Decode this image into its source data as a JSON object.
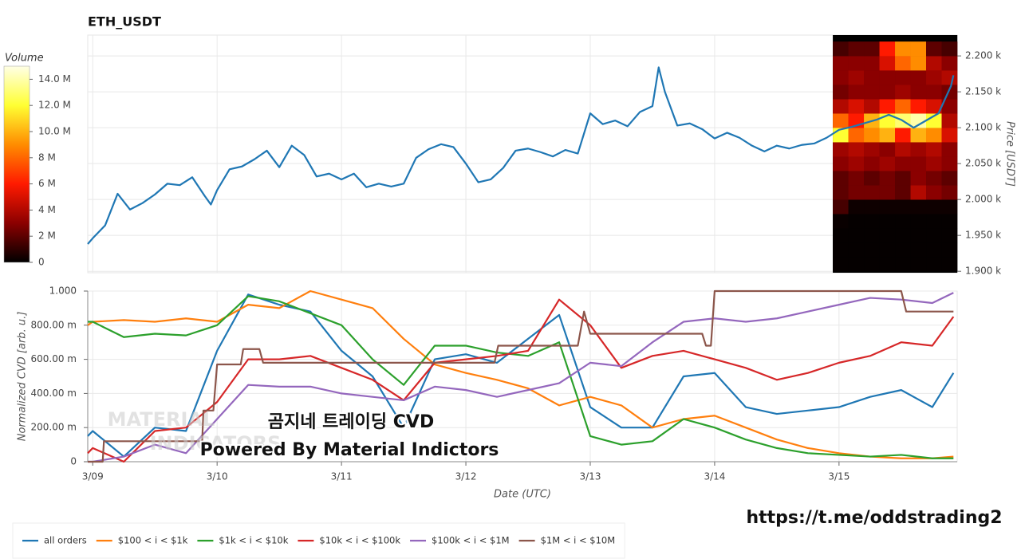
{
  "chart_data": [
    {
      "type": "line",
      "title": "ETH_USDT",
      "y_label": "Price [USDT]",
      "yaxis": "right",
      "color": "#1f77b4",
      "grid": true,
      "xlim": [
        -0.04,
        6.95
      ],
      "xticks": [
        0,
        1,
        2,
        3,
        4,
        5,
        6
      ],
      "ylim": [
        1898,
        2229
      ],
      "yticks": [
        {
          "value": 1900,
          "label": "1.900 k"
        },
        {
          "value": 1950,
          "label": "1.950 k"
        },
        {
          "value": 2000,
          "label": "2.000 k"
        },
        {
          "value": 2050,
          "label": "2.050 k"
        },
        {
          "value": 2100,
          "label": "2.100 k"
        },
        {
          "value": 2150,
          "label": "2.150 k"
        },
        {
          "value": 2200,
          "label": "2.200 k"
        }
      ],
      "x": [
        -0.04,
        0,
        0.1,
        0.2,
        0.3,
        0.4,
        0.5,
        0.6,
        0.7,
        0.8,
        0.9,
        0.95,
        1.0,
        1.1,
        1.2,
        1.3,
        1.4,
        1.5,
        1.6,
        1.7,
        1.8,
        1.9,
        2.0,
        2.1,
        2.2,
        2.3,
        2.4,
        2.5,
        2.6,
        2.7,
        2.8,
        2.9,
        3.0,
        3.1,
        3.2,
        3.3,
        3.4,
        3.5,
        3.6,
        3.7,
        3.8,
        3.9,
        4.0,
        4.1,
        4.2,
        4.3,
        4.4,
        4.5,
        4.55,
        4.6,
        4.7,
        4.8,
        4.9,
        5.0,
        5.1,
        5.2,
        5.3,
        5.4,
        5.5,
        5.6,
        5.7,
        5.8,
        5.9,
        6.0,
        6.1,
        6.2,
        6.3,
        6.4,
        6.5,
        6.6,
        6.7,
        6.8,
        6.9,
        6.92
      ],
      "values": [
        1938,
        1946,
        1964,
        2008,
        1986,
        1995,
        2007,
        2022,
        2020,
        2031,
        2005,
        1993,
        2013,
        2042,
        2046,
        2056,
        2068,
        2045,
        2075,
        2062,
        2032,
        2036,
        2028,
        2036,
        2017,
        2022,
        2018,
        2022,
        2058,
        2070,
        2077,
        2073,
        2050,
        2024,
        2028,
        2044,
        2068,
        2071,
        2066,
        2060,
        2069,
        2064,
        2120,
        2105,
        2110,
        2102,
        2122,
        2130,
        2184,
        2150,
        2103,
        2106,
        2098,
        2085,
        2093,
        2086,
        2075,
        2067,
        2075,
        2071,
        2076,
        2078,
        2086,
        2097,
        2101,
        2106,
        2111,
        2118,
        2111,
        2100,
        2110,
        2120,
        2158,
        2173
      ],
      "heatmap": {
        "label": "Volume",
        "colorscale": [
          "#000000",
          "#8b0000",
          "#ff1a00",
          "#ff8c00",
          "#ffff33",
          "#ffffe6"
        ],
        "clim": [
          0,
          15
        ],
        "cticks": [
          {
            "value": 0,
            "label": "0"
          },
          {
            "value": 2,
            "label": "2 M"
          },
          {
            "value": 4,
            "label": "4 M"
          },
          {
            "value": 6,
            "label": "6 M"
          },
          {
            "value": 8,
            "label": "8 M"
          },
          {
            "value": 10,
            "label": "10.0 M"
          },
          {
            "value": 12,
            "label": "12.0 M"
          },
          {
            "value": 14,
            "label": "14.0 M"
          }
        ],
        "xbins": [
          5.95,
          6.075,
          6.2,
          6.325,
          6.45,
          6.575,
          6.7,
          6.825,
          6.95
        ],
        "ybins": [
          1900,
          1920,
          1940,
          1960,
          1980,
          2000,
          2020,
          2040,
          2060,
          2080,
          2100,
          2120,
          2140,
          2160,
          2180,
          2200,
          2220
        ],
        "values": [
          [
            0.1,
            0.1,
            0.1,
            0.1,
            0.1,
            0.1,
            0.1,
            0.1
          ],
          [
            0.1,
            0.1,
            0.1,
            0.1,
            0.1,
            0.1,
            0.1,
            0.1
          ],
          [
            0.1,
            0.1,
            0.1,
            0.1,
            0.1,
            0.1,
            0.1,
            0.1
          ],
          [
            0.2,
            0.1,
            0.1,
            0.1,
            0.1,
            0.1,
            0.1,
            0.1
          ],
          [
            1.5,
            0.3,
            0.3,
            0.3,
            0.3,
            0.3,
            0.3,
            0.3
          ],
          [
            2,
            2.5,
            2.5,
            2.5,
            2,
            4,
            3,
            2.5
          ],
          [
            2,
            2.5,
            2,
            2.5,
            2,
            3,
            2.5,
            2
          ],
          [
            3,
            3.5,
            3,
            3.5,
            3,
            3,
            3.5,
            3
          ],
          [
            3.5,
            4,
            3.5,
            3,
            4,
            3.5,
            4,
            3
          ],
          [
            12,
            8,
            9,
            10,
            6,
            10,
            9,
            5
          ],
          [
            8,
            6,
            10,
            12,
            13,
            14,
            12,
            4
          ],
          [
            4,
            5,
            4,
            6,
            8,
            6,
            5,
            3
          ],
          [
            2.5,
            3,
            3,
            3,
            3.5,
            3,
            3,
            2.5
          ],
          [
            3,
            3.5,
            3,
            3,
            3,
            3,
            3.5,
            4
          ],
          [
            3,
            3,
            3,
            5,
            8,
            9,
            4,
            3
          ],
          [
            1.5,
            2,
            2,
            6,
            9,
            9,
            2,
            1.5
          ]
        ]
      }
    },
    {
      "type": "line",
      "x_label": "Date (UTC)",
      "y_label": "Normalized CVD [arb. u.]",
      "grid": true,
      "legend": "bottom-left",
      "xlim": [
        -0.04,
        6.95
      ],
      "xticks": [
        {
          "value": 0,
          "label": "3/09"
        },
        {
          "value": 1,
          "label": "3/10"
        },
        {
          "value": 2,
          "label": "3/11"
        },
        {
          "value": 3,
          "label": "3/12"
        },
        {
          "value": 4,
          "label": "3/13"
        },
        {
          "value": 5,
          "label": "3/14"
        },
        {
          "value": 6,
          "label": "3/15"
        }
      ],
      "ylim": [
        0,
        1
      ],
      "yticks": [
        0,
        {
          "value": 0.2,
          "label": "200.00 m"
        },
        {
          "value": 0.4,
          "label": "400.00 m"
        },
        {
          "value": 0.6,
          "label": "600.00 m"
        },
        {
          "value": 0.8,
          "label": "800.00 m"
        },
        {
          "value": 1,
          "label": "1.000"
        }
      ],
      "x": [
        -0.04,
        0,
        0.25,
        0.5,
        0.75,
        1,
        1.25,
        1.5,
        1.75,
        2,
        2.25,
        2.5,
        2.75,
        3,
        3.25,
        3.5,
        3.75,
        4,
        4.25,
        4.5,
        4.75,
        5,
        5.25,
        5.5,
        5.75,
        6,
        6.25,
        6.5,
        6.75,
        6.92
      ],
      "series": [
        {
          "name": "all orders",
          "color": "#1f77b4",
          "values": [
            0.15,
            0.18,
            0.03,
            0.2,
            0.18,
            0.65,
            0.98,
            0.92,
            0.88,
            0.65,
            0.5,
            0.2,
            0.6,
            0.63,
            0.58,
            0.72,
            0.86,
            0.32,
            0.2,
            0.2,
            0.5,
            0.52,
            0.32,
            0.28,
            0.3,
            0.32,
            0.38,
            0.42,
            0.32,
            0.52
          ]
        },
        {
          "name": "$100 < i < $1k",
          "color": "#ff7f0e",
          "values": [
            0.8,
            0.82,
            0.83,
            0.82,
            0.84,
            0.82,
            0.92,
            0.9,
            1.0,
            0.95,
            0.9,
            0.72,
            0.57,
            0.52,
            0.48,
            0.43,
            0.33,
            0.38,
            0.33,
            0.2,
            0.25,
            0.27,
            0.2,
            0.13,
            0.08,
            0.05,
            0.03,
            0.02,
            0.02,
            0.03
          ]
        },
        {
          "name": "$1k < i < $10k",
          "color": "#2ca02c",
          "values": [
            0.82,
            0.82,
            0.73,
            0.75,
            0.74,
            0.8,
            0.97,
            0.94,
            0.87,
            0.8,
            0.6,
            0.45,
            0.68,
            0.68,
            0.64,
            0.62,
            0.7,
            0.15,
            0.1,
            0.12,
            0.25,
            0.2,
            0.13,
            0.08,
            0.05,
            0.04,
            0.03,
            0.04,
            0.02,
            0.02
          ]
        },
        {
          "name": "$10k < i < $100k",
          "color": "#d62728",
          "values": [
            0.05,
            0.08,
            0,
            0.18,
            0.2,
            0.35,
            0.6,
            0.6,
            0.62,
            0.55,
            0.48,
            0.36,
            0.58,
            0.6,
            0.62,
            0.65,
            0.95,
            0.8,
            0.55,
            0.62,
            0.65,
            0.6,
            0.55,
            0.48,
            0.52,
            0.58,
            0.62,
            0.7,
            0.68,
            0.85
          ]
        },
        {
          "name": "$100k < i < $1M",
          "color": "#9467bd",
          "values": [
            0,
            0,
            0.03,
            0.1,
            0.05,
            0.25,
            0.45,
            0.44,
            0.44,
            0.4,
            0.38,
            0.36,
            0.44,
            0.42,
            0.38,
            0.42,
            0.46,
            0.58,
            0.56,
            0.7,
            0.82,
            0.84,
            0.82,
            0.84,
            0.88,
            0.92,
            0.96,
            0.95,
            0.93,
            0.99
          ]
        },
        {
          "name": "$1M < i < $10M",
          "color": "#8c564b",
          "x": [
            -0.04,
            0.08,
            0.09,
            0.88,
            0.89,
            0.97,
            1.0,
            1.19,
            1.21,
            1.34,
            1.37,
            3.23,
            3.26,
            3.9,
            3.95,
            4.0,
            4.9,
            4.93,
            4.97,
            5.0,
            6.5,
            6.54,
            6.92
          ],
          "values": [
            0,
            0,
            0.12,
            0.12,
            0.3,
            0.3,
            0.57,
            0.57,
            0.66,
            0.66,
            0.58,
            0.58,
            0.68,
            0.68,
            0.88,
            0.75,
            0.75,
            0.68,
            0.68,
            1.0,
            1.0,
            0.88,
            0.88
          ]
        }
      ]
    }
  ],
  "overlay": {
    "watermark": [
      "MATERIAL",
      "INDICATORS"
    ],
    "title": "곰지네 트레이딩 CVD",
    "subtitle": "Powered By Material Indictors",
    "link": "https://t.me/oddstrading2"
  }
}
